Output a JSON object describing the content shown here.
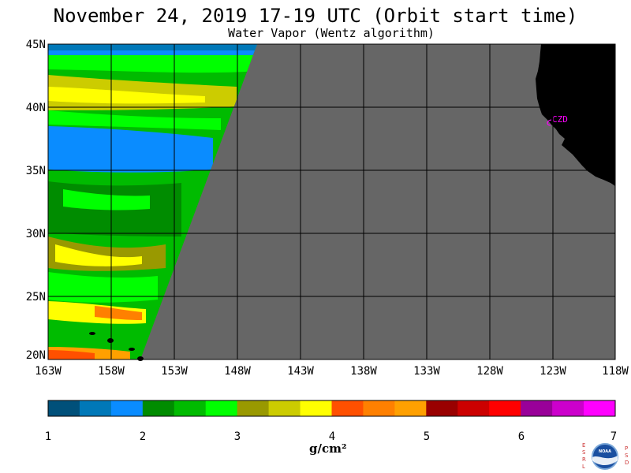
{
  "title": "November 24, 2019  17-19 UTC  (Orbit start time)",
  "subtitle": "Water Vapor (Wentz algorithm)",
  "map": {
    "lat_labels": [
      "45N",
      "40N",
      "35N",
      "30N",
      "25N",
      "20N"
    ],
    "lon_labels": [
      "163W",
      "158W",
      "153W",
      "148W",
      "143W",
      "138W",
      "133W",
      "128W",
      "123W",
      "118W"
    ],
    "station_label": "CZD",
    "colors": {
      "nodata": "#666666",
      "land": "#000000",
      "station": "#ff00ff",
      "grid": "#000000"
    }
  },
  "colorbar": {
    "tick_labels": [
      "1",
      "2",
      "3",
      "4",
      "5",
      "6",
      "7"
    ],
    "unit": "g/cm²",
    "colors": [
      "#00507a",
      "#0078b8",
      "#0a8cff",
      "#008c00",
      "#00bb00",
      "#00ff00",
      "#999900",
      "#cccc00",
      "#ffff00",
      "#ff5000",
      "#ff8000",
      "#ffa000",
      "#990000",
      "#cc0000",
      "#ff0000",
      "#990099",
      "#cc00cc",
      "#ff00ff"
    ]
  },
  "logo": {
    "left_letters": "ESRL",
    "right_letters": "PSD",
    "center": "NOAA"
  }
}
